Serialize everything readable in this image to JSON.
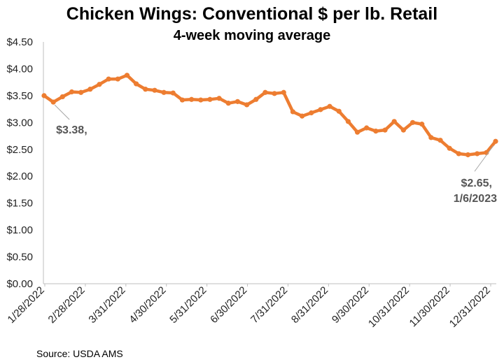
{
  "chart_data": {
    "type": "line",
    "title": "Chicken Wings: Conventional $ per lb. Retail",
    "subtitle": "4-week moving average",
    "xlabel": "",
    "ylabel": "",
    "ylim": [
      0,
      4.5
    ],
    "y_ticks": [
      "$0.00",
      "$0.50",
      "$1.00",
      "$1.50",
      "$2.00",
      "$2.50",
      "$3.00",
      "$3.50",
      "$4.00",
      "$4.50"
    ],
    "x_ticks": [
      "1/28/2022",
      "2/28/2022",
      "3/31/2022",
      "4/30/2022",
      "5/31/2022",
      "6/30/2022",
      "7/31/2022",
      "8/31/2022",
      "9/30/2022",
      "10/31/2022",
      "11/30/2022",
      "12/31/2022"
    ],
    "x_start": "1/28/2022",
    "x_end": "1/6/2023",
    "grid": false,
    "color": "#ED7D31",
    "series": [
      {
        "values": [
          3.5,
          3.38,
          3.48,
          3.57,
          3.56,
          3.62,
          3.71,
          3.81,
          3.81,
          3.88,
          3.72,
          3.62,
          3.6,
          3.56,
          3.55,
          3.42,
          3.43,
          3.42,
          3.43,
          3.45,
          3.36,
          3.39,
          3.33,
          3.43,
          3.56,
          3.54,
          3.56,
          3.2,
          3.12,
          3.18,
          3.24,
          3.3,
          3.21,
          3.02,
          2.82,
          2.9,
          2.84,
          2.86,
          3.02,
          2.86,
          3.0,
          2.97,
          2.72,
          2.67,
          2.52,
          2.42,
          2.4,
          2.42,
          2.44,
          2.65
        ]
      }
    ],
    "annotations": [
      {
        "text": "$3.38,",
        "point_index": 1
      },
      {
        "text": "$2.65,",
        "text2": "1/6/2023",
        "point_index": 49
      }
    ]
  },
  "footer": {
    "source": "Source: USDA AMS"
  }
}
